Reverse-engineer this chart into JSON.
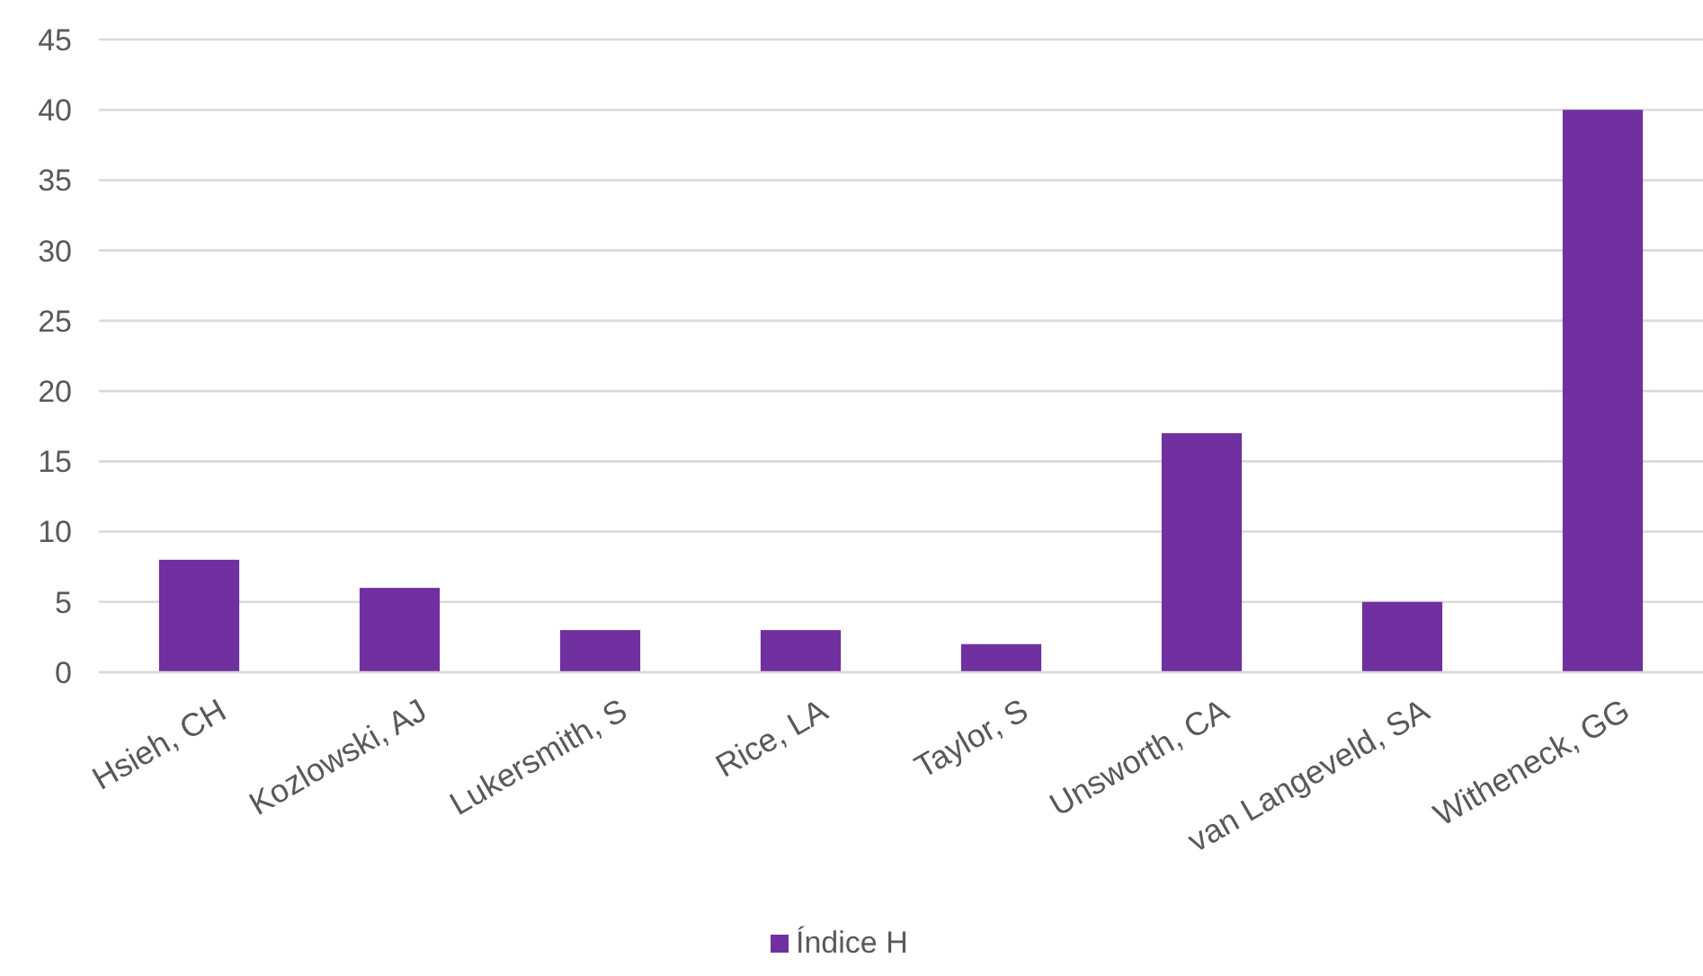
{
  "chart_data": {
    "type": "bar",
    "categories": [
      "Hsieh, CH",
      "Kozlowski, AJ",
      "Lukersmith, S",
      "Rice, LA",
      "Taylor, S",
      "Unsworth, CA",
      "van Langeveld, SA",
      "Witheneck, GG"
    ],
    "series": [
      {
        "name": "Índice H",
        "color": "#7030a0",
        "values": [
          8,
          6,
          3,
          3,
          2,
          17,
          5,
          40
        ]
      }
    ],
    "ylim": [
      0,
      45
    ],
    "yticks": [
      0,
      5,
      10,
      15,
      20,
      25,
      30,
      35,
      40,
      45
    ],
    "grid": "y",
    "legend": "bottom"
  }
}
